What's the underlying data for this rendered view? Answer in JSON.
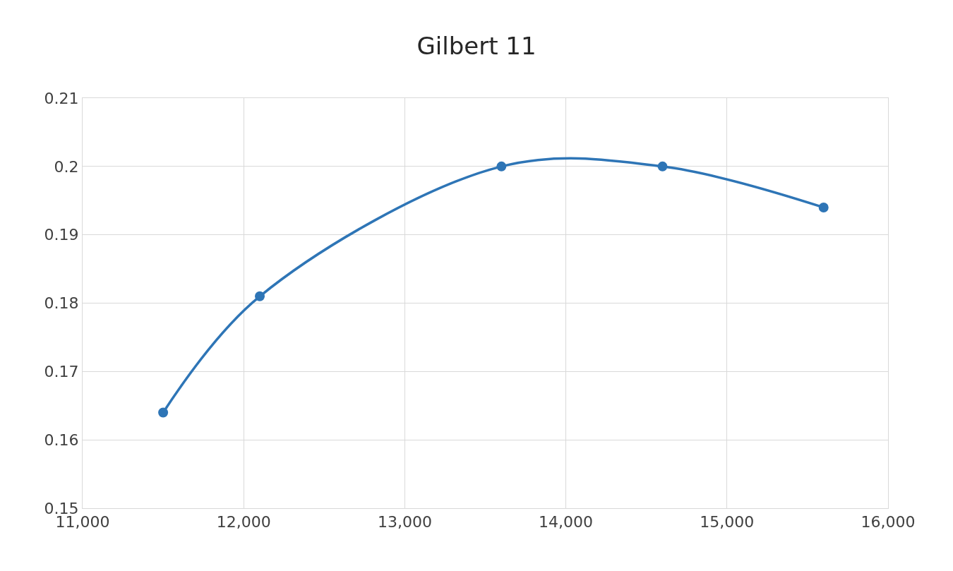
{
  "chart_data": {
    "type": "line",
    "title": "Gilbert 11",
    "x": [
      11500,
      12100,
      13600,
      14600,
      15600
    ],
    "series": [
      {
        "color": "#2e75b6",
        "values": [
          0.164,
          0.181,
          0.2,
          0.2,
          0.194
        ]
      }
    ],
    "xlim": [
      11000,
      16000
    ],
    "xticks": [
      {
        "value": 11000,
        "label": "11,000"
      },
      {
        "value": 12000,
        "label": "12,000"
      },
      {
        "value": 13000,
        "label": "13,000"
      },
      {
        "value": 14000,
        "label": "14,000"
      },
      {
        "value": 15000,
        "label": "15,000"
      },
      {
        "value": 16000,
        "label": "16,000"
      }
    ],
    "ylim": [
      0.15,
      0.21
    ],
    "yticks": [
      0.15,
      0.16,
      0.17,
      0.18,
      0.19,
      0.2,
      0.21
    ],
    "grid": true,
    "marker": "circle",
    "line_style": "solid"
  }
}
